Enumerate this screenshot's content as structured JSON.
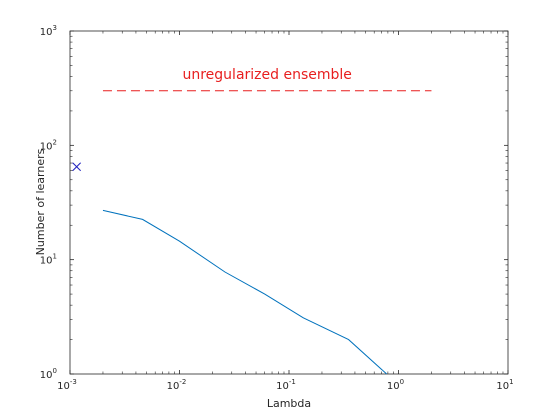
{
  "chart_data": {
    "type": "line",
    "title": "",
    "xlabel": "Lambda",
    "ylabel": "Number of learners",
    "xscale": "log",
    "yscale": "log",
    "xlim": [
      0.001,
      10
    ],
    "ylim": [
      1,
      1000
    ],
    "grid": false,
    "legend": "none",
    "x_ticks": [
      {
        "base": "10",
        "exp": "-3",
        "value": 0.001
      },
      {
        "base": "10",
        "exp": "-2",
        "value": 0.01
      },
      {
        "base": "10",
        "exp": "-1",
        "value": 0.1
      },
      {
        "base": "10",
        "exp": "0",
        "value": 1
      },
      {
        "base": "10",
        "exp": "1",
        "value": 10
      }
    ],
    "y_ticks": [
      {
        "base": "10",
        "exp": "0",
        "value": 1
      },
      {
        "base": "10",
        "exp": "1",
        "value": 10
      },
      {
        "base": "10",
        "exp": "2",
        "value": 100
      },
      {
        "base": "10",
        "exp": "3",
        "value": 1000
      }
    ],
    "series": [
      {
        "color": "#0072BD",
        "x": [
          0.002,
          0.0046,
          0.01,
          0.026,
          0.06,
          0.135,
          0.35,
          0.78
        ],
        "y": [
          27,
          22.5,
          14.5,
          7.8,
          5,
          3.1,
          2,
          1
        ]
      }
    ],
    "marker": {
      "x": 0.00115,
      "y": 65,
      "symbol": "x",
      "color": "#1f1fbf"
    },
    "reference_line": {
      "label": "unregularized ensemble",
      "color": "#e81f1f",
      "y": 300,
      "x_start": 0.002,
      "x_end": 2,
      "style": "dashed"
    }
  }
}
